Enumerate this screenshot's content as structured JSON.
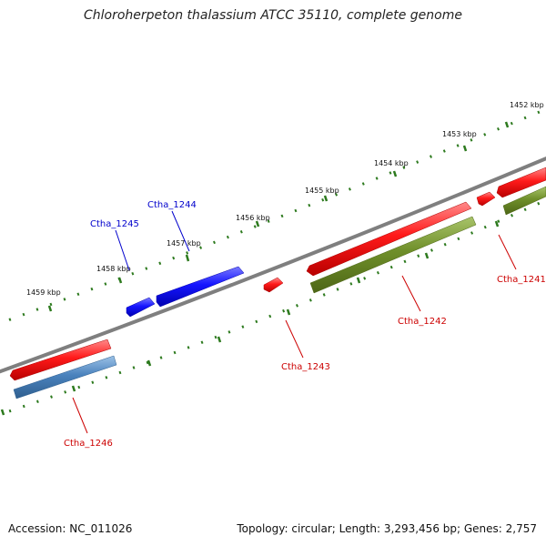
{
  "title": "Chloroherpeton thalassium ATCC 35110, complete genome",
  "footer": {
    "accession": "Accession: NC_011026",
    "summary": "Topology: circular; Length: 3,293,456 bp; Genes: 2,757"
  },
  "colors": {
    "backbone": "#7f7f7f",
    "tick": "#2d7a1e",
    "label_red": "#cc0000",
    "label_blue": "#0000cc",
    "gene_red": "#ee1111",
    "gene_blue": "#1111ee",
    "gene_olive": "#6b8e23",
    "gene_steel": "#4a7fb5"
  },
  "ruler": {
    "labels": [
      "1452 kbp",
      "1453 kbp",
      "1454 kbp",
      "1455 kbp",
      "1456 kbp",
      "1457 kbp",
      "1458 kbp",
      "1459 kbp"
    ]
  },
  "genes": [
    {
      "id": "Ctha_1241",
      "label": "Ctha_1241",
      "strand": "+",
      "color": "red"
    },
    {
      "id": "Ctha_1242",
      "label": "Ctha_1242",
      "strand": "+",
      "color": "red"
    },
    {
      "id": "Ctha_1243",
      "label": "Ctha_1243",
      "strand": "+",
      "color": "red"
    },
    {
      "id": "Ctha_1244",
      "label": "Ctha_1244",
      "strand": "+",
      "color": "blue"
    },
    {
      "id": "Ctha_1245",
      "label": "Ctha_1245",
      "strand": "+",
      "color": "blue"
    },
    {
      "id": "Ctha_1246",
      "label": "Ctha_1246",
      "strand": "+",
      "color": "red"
    }
  ]
}
